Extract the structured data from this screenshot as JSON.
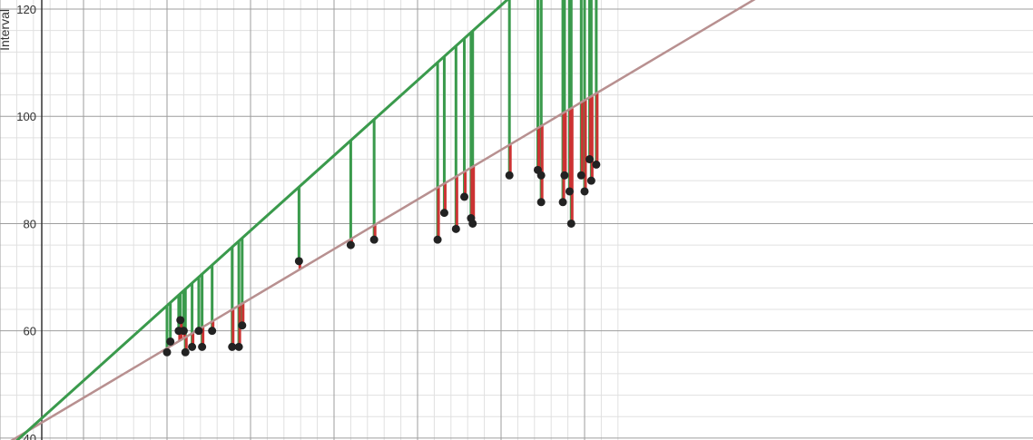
{
  "chart_data": {
    "type": "scatter",
    "title": "",
    "xlabel": "",
    "ylabel": "Interval",
    "ylim": [
      40,
      122
    ],
    "xlim": [
      1.5,
      5.2
    ],
    "grid": true,
    "y_ticks": [
      {
        "value": 40,
        "label": "40"
      },
      {
        "value": 60,
        "label": "60"
      },
      {
        "value": 80,
        "label": "80"
      },
      {
        "value": 100,
        "label": "100"
      },
      {
        "value": 120,
        "label": "120"
      }
    ],
    "colors": {
      "points": "#222222",
      "upper_line": "#3a9a4c",
      "fit_line": "#b89090",
      "upper_residual": "#3a9a4c",
      "fit_residual": "#cc3333",
      "major_grid": "#9e9e9e",
      "minor_grid": "#e0e0e0",
      "axis": "#333333"
    },
    "fit_line": {
      "intercept": 10.5,
      "slope": 18.5
    },
    "upper_line": {
      "intercept": -5.3,
      "slope": 28.0
    },
    "points": [
      {
        "x": 2.5,
        "y": 56
      },
      {
        "x": 2.52,
        "y": 58
      },
      {
        "x": 2.57,
        "y": 60
      },
      {
        "x": 2.58,
        "y": 62
      },
      {
        "x": 2.6,
        "y": 60
      },
      {
        "x": 2.61,
        "y": 56
      },
      {
        "x": 2.65,
        "y": 57
      },
      {
        "x": 2.69,
        "y": 60
      },
      {
        "x": 2.71,
        "y": 57
      },
      {
        "x": 2.77,
        "y": 60
      },
      {
        "x": 2.89,
        "y": 57
      },
      {
        "x": 2.93,
        "y": 57
      },
      {
        "x": 2.95,
        "y": 61
      },
      {
        "x": 3.29,
        "y": 73
      },
      {
        "x": 3.6,
        "y": 76
      },
      {
        "x": 3.74,
        "y": 77
      },
      {
        "x": 4.12,
        "y": 77
      },
      {
        "x": 4.16,
        "y": 82
      },
      {
        "x": 4.23,
        "y": 79
      },
      {
        "x": 4.28,
        "y": 85
      },
      {
        "x": 4.32,
        "y": 81
      },
      {
        "x": 4.33,
        "y": 80
      },
      {
        "x": 4.55,
        "y": 89
      },
      {
        "x": 4.72,
        "y": 90
      },
      {
        "x": 4.74,
        "y": 89
      },
      {
        "x": 4.74,
        "y": 84
      },
      {
        "x": 4.87,
        "y": 84
      },
      {
        "x": 4.88,
        "y": 89
      },
      {
        "x": 4.91,
        "y": 86
      },
      {
        "x": 4.92,
        "y": 80
      },
      {
        "x": 4.98,
        "y": 89
      },
      {
        "x": 5.0,
        "y": 86
      },
      {
        "x": 5.03,
        "y": 92
      },
      {
        "x": 5.04,
        "y": 88
      },
      {
        "x": 5.07,
        "y": 91
      }
    ]
  }
}
